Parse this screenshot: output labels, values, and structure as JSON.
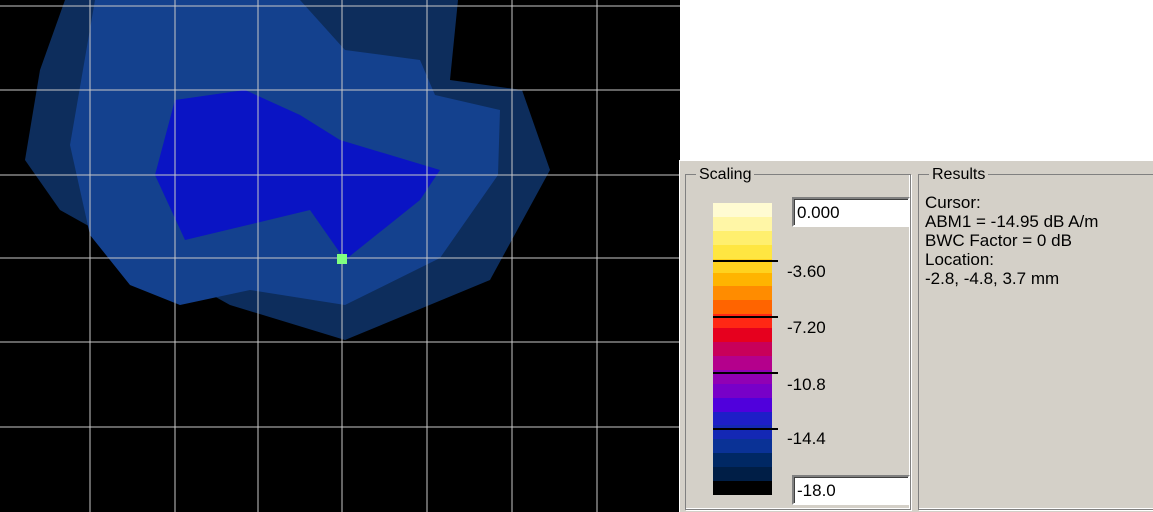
{
  "scaling": {
    "title": "Scaling",
    "max_value": "0.000",
    "min_value": "-18.0",
    "labels": [
      "-3.60",
      "-7.20",
      "-10.8",
      "-14.4"
    ]
  },
  "results": {
    "title": "Results",
    "cursor_label": "Cursor:",
    "abm_line": "ABM1 = -14.95 dB A/m",
    "bwc_line": "BWC Factor = 0 dB",
    "location_label": "Location:",
    "location_value": "-2.8, -4.8, 3.7 mm"
  },
  "colorbar": {
    "bands": [
      "#fffbd2",
      "#fff6a6",
      "#ffef6e",
      "#ffe641",
      "#ffd21e",
      "#ffb400",
      "#ff8c00",
      "#ff6400",
      "#ff2814",
      "#e6001e",
      "#c8005a",
      "#b4008c",
      "#9100b4",
      "#7800c8",
      "#5000dc",
      "#1e1ec8",
      "#1428b4",
      "#0a3296",
      "#002864",
      "#001e46",
      "#000000"
    ],
    "marker_color": "#80ff80"
  }
}
